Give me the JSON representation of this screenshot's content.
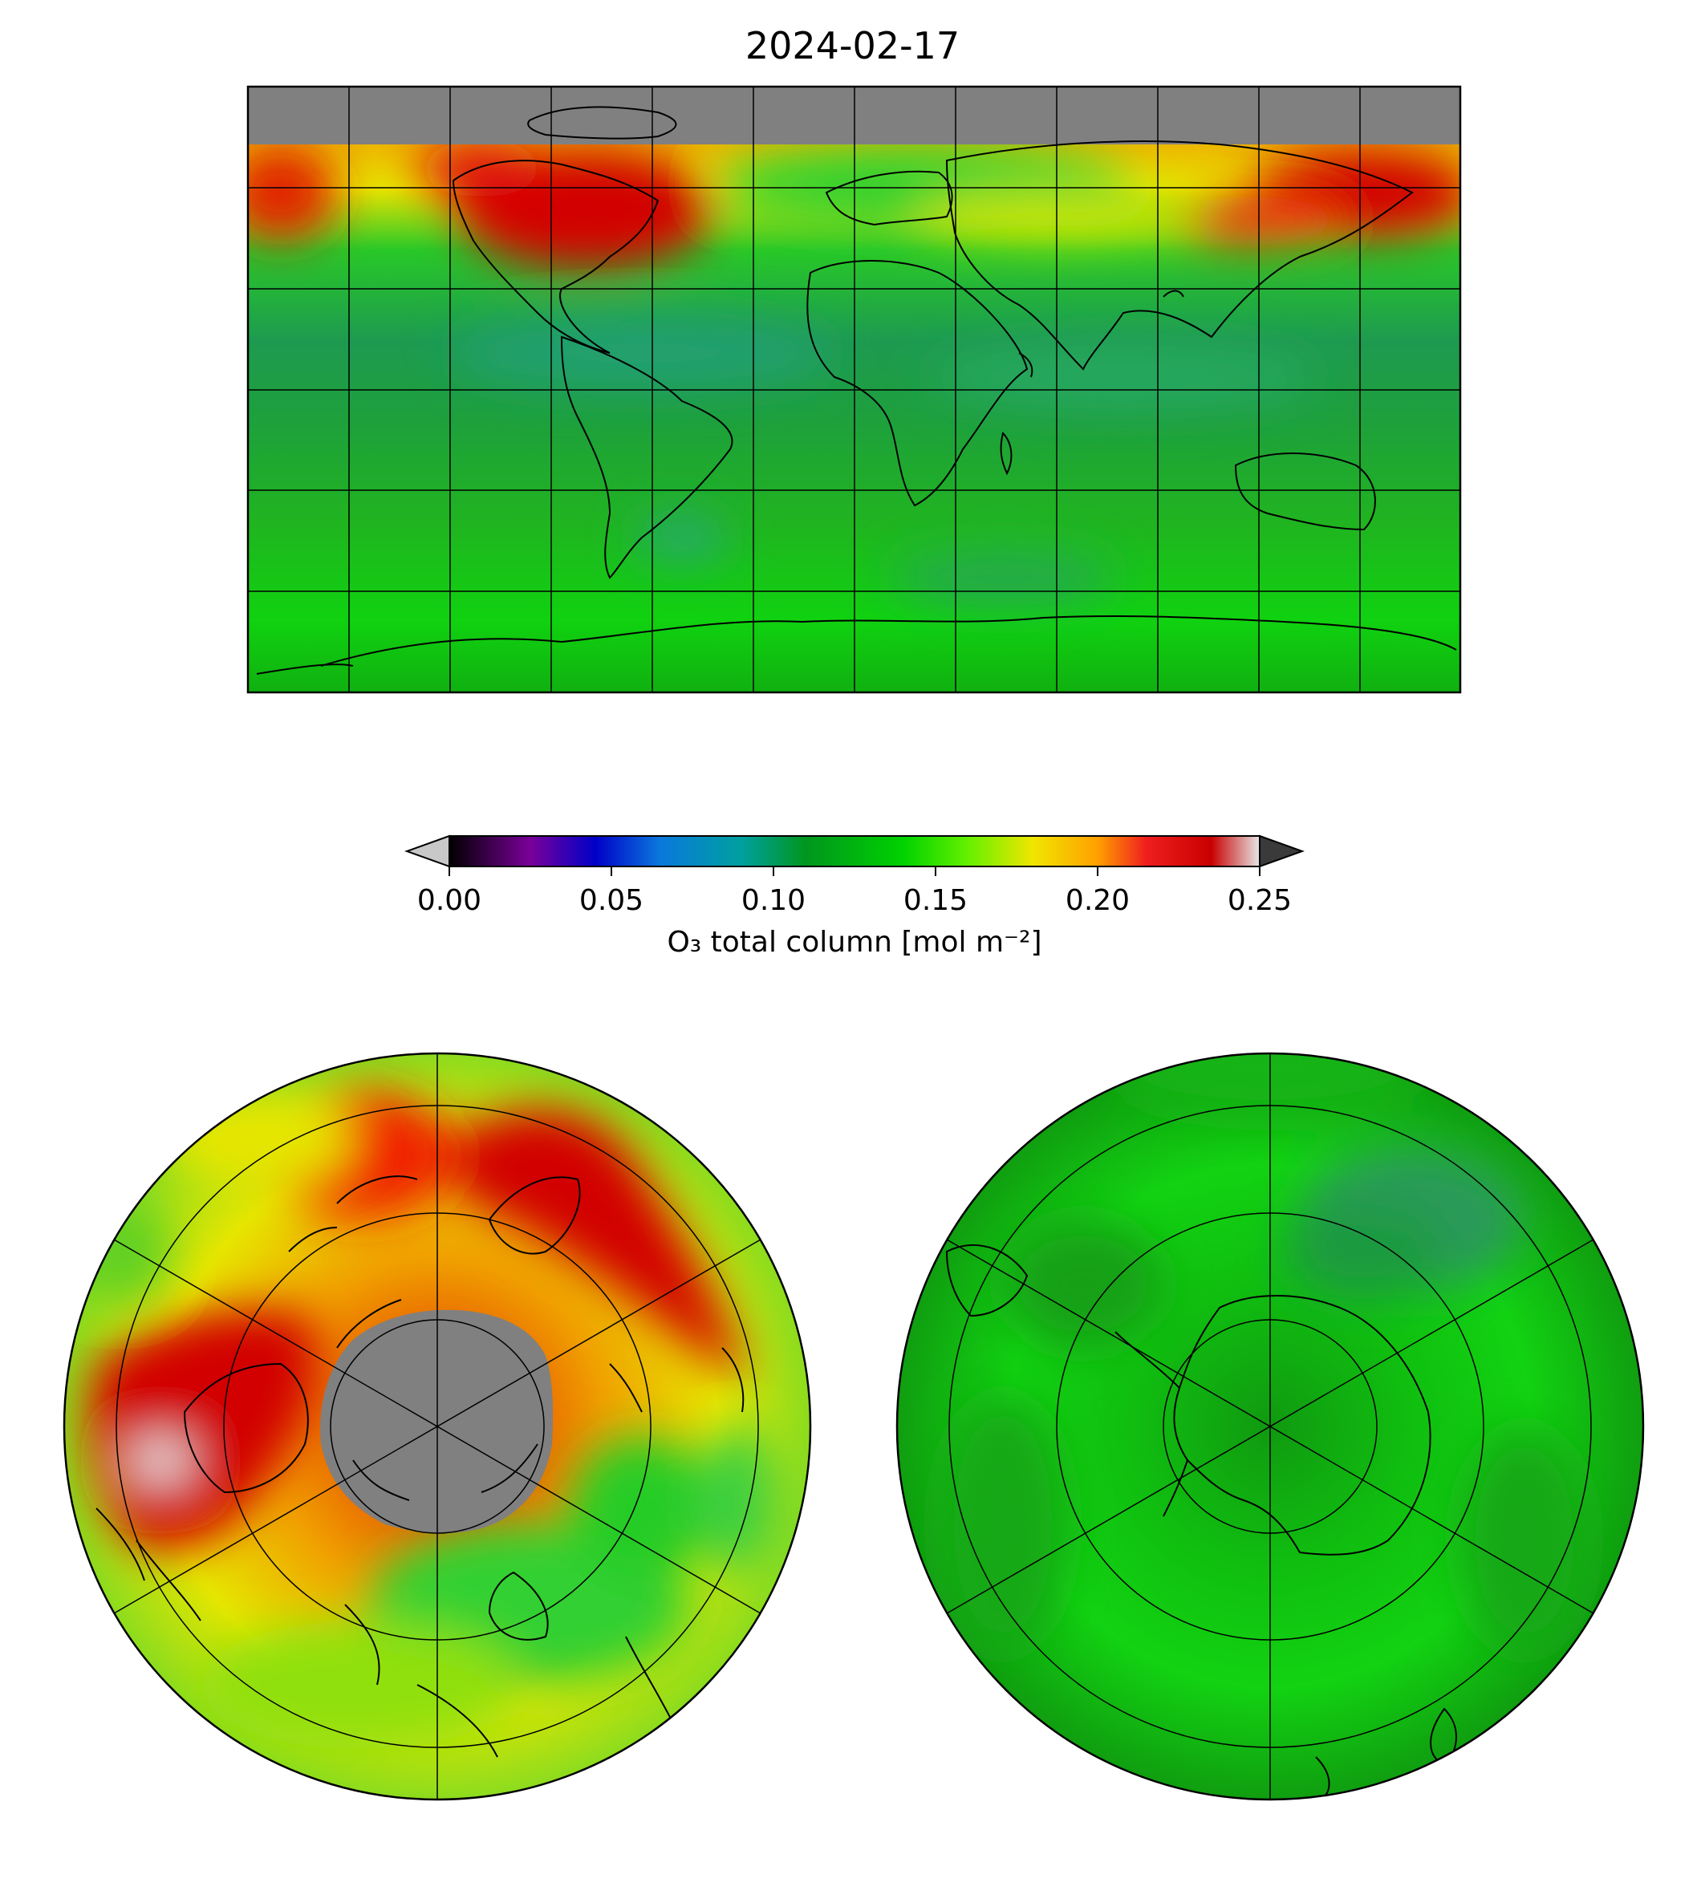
{
  "title": "2024-02-17",
  "colorbar": {
    "label": "O₃ total column [mol m⁻²]",
    "ticks": [
      "0.00",
      "0.05",
      "0.10",
      "0.15",
      "0.20",
      "0.25"
    ],
    "range": [
      0,
      0.25
    ],
    "under_color": "#c8c8c8",
    "over_color": "#3a3a3a",
    "stops": [
      {
        "v": 0.0,
        "c": "#000000"
      },
      {
        "v": 0.025,
        "c": "#7a0099"
      },
      {
        "v": 0.045,
        "c": "#0000c8"
      },
      {
        "v": 0.065,
        "c": "#0a78dc"
      },
      {
        "v": 0.09,
        "c": "#00a0a0"
      },
      {
        "v": 0.11,
        "c": "#00961e"
      },
      {
        "v": 0.14,
        "c": "#00d200"
      },
      {
        "v": 0.16,
        "c": "#64f000"
      },
      {
        "v": 0.18,
        "c": "#f0e600"
      },
      {
        "v": 0.2,
        "c": "#ffa000"
      },
      {
        "v": 0.215,
        "c": "#f01e1e"
      },
      {
        "v": 0.235,
        "c": "#c80000"
      },
      {
        "v": 0.25,
        "c": "#e6e6e6"
      }
    ]
  },
  "maps": {
    "global": {
      "projection": "plate-carree",
      "nodata_color": "#808080"
    },
    "north_polar": {
      "projection": "north-polar-stereographic",
      "nodata_color": "#808080"
    },
    "south_polar": {
      "projection": "south-polar-stereographic"
    }
  }
}
